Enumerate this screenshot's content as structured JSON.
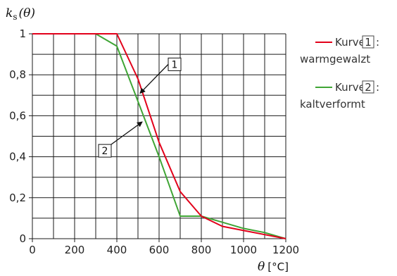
{
  "chart_data": {
    "type": "line",
    "ylabel_symbol": "k",
    "ylabel_subscript": "s",
    "ylabel_arg": "(θ)",
    "xlabel_symbol": "θ",
    "xlabel_unit": "[°C]",
    "xlim": [
      0,
      1200
    ],
    "ylim": [
      0,
      1
    ],
    "grid": true,
    "x_ticks": [
      0,
      200,
      400,
      600,
      800,
      1000,
      1200
    ],
    "x_tick_labels": [
      "0",
      "200",
      "400",
      "600",
      "800",
      "1000",
      "1200"
    ],
    "y_ticks": [
      0,
      0.2,
      0.4,
      0.6,
      0.8,
      1
    ],
    "y_tick_labels": [
      "0",
      "0,2",
      "0,4",
      "0,6",
      "0,8",
      "1"
    ],
    "legend_position": "right",
    "series": [
      {
        "name": "Kurve 1: warmgewalzt",
        "legend_prefix": "Kurve",
        "legend_number": "1",
        "legend_desc": "warmgewalzt",
        "color": "#e2001a",
        "x": [
          0,
          100,
          200,
          300,
          400,
          500,
          600,
          700,
          800,
          900,
          1000,
          1100,
          1200
        ],
        "y": [
          1.0,
          1.0,
          1.0,
          1.0,
          1.0,
          0.78,
          0.47,
          0.23,
          0.11,
          0.06,
          0.04,
          0.02,
          0.0
        ]
      },
      {
        "name": "Kurve 2: kaltverformt",
        "legend_prefix": "Kurve",
        "legend_number": "2",
        "legend_desc": "kaltverformt",
        "color": "#3fa535",
        "x": [
          0,
          100,
          200,
          300,
          400,
          500,
          600,
          700,
          800,
          900,
          1000,
          1100,
          1200
        ],
        "y": [
          1.0,
          1.0,
          1.0,
          1.0,
          0.94,
          0.67,
          0.4,
          0.11,
          0.11,
          0.08,
          0.05,
          0.03,
          0.0
        ]
      }
    ],
    "annotations": [
      {
        "label": "1",
        "series": 0,
        "point": [
          510,
          0.71
        ]
      },
      {
        "label": "2",
        "series": 1,
        "point": [
          520,
          0.57
        ]
      }
    ]
  }
}
